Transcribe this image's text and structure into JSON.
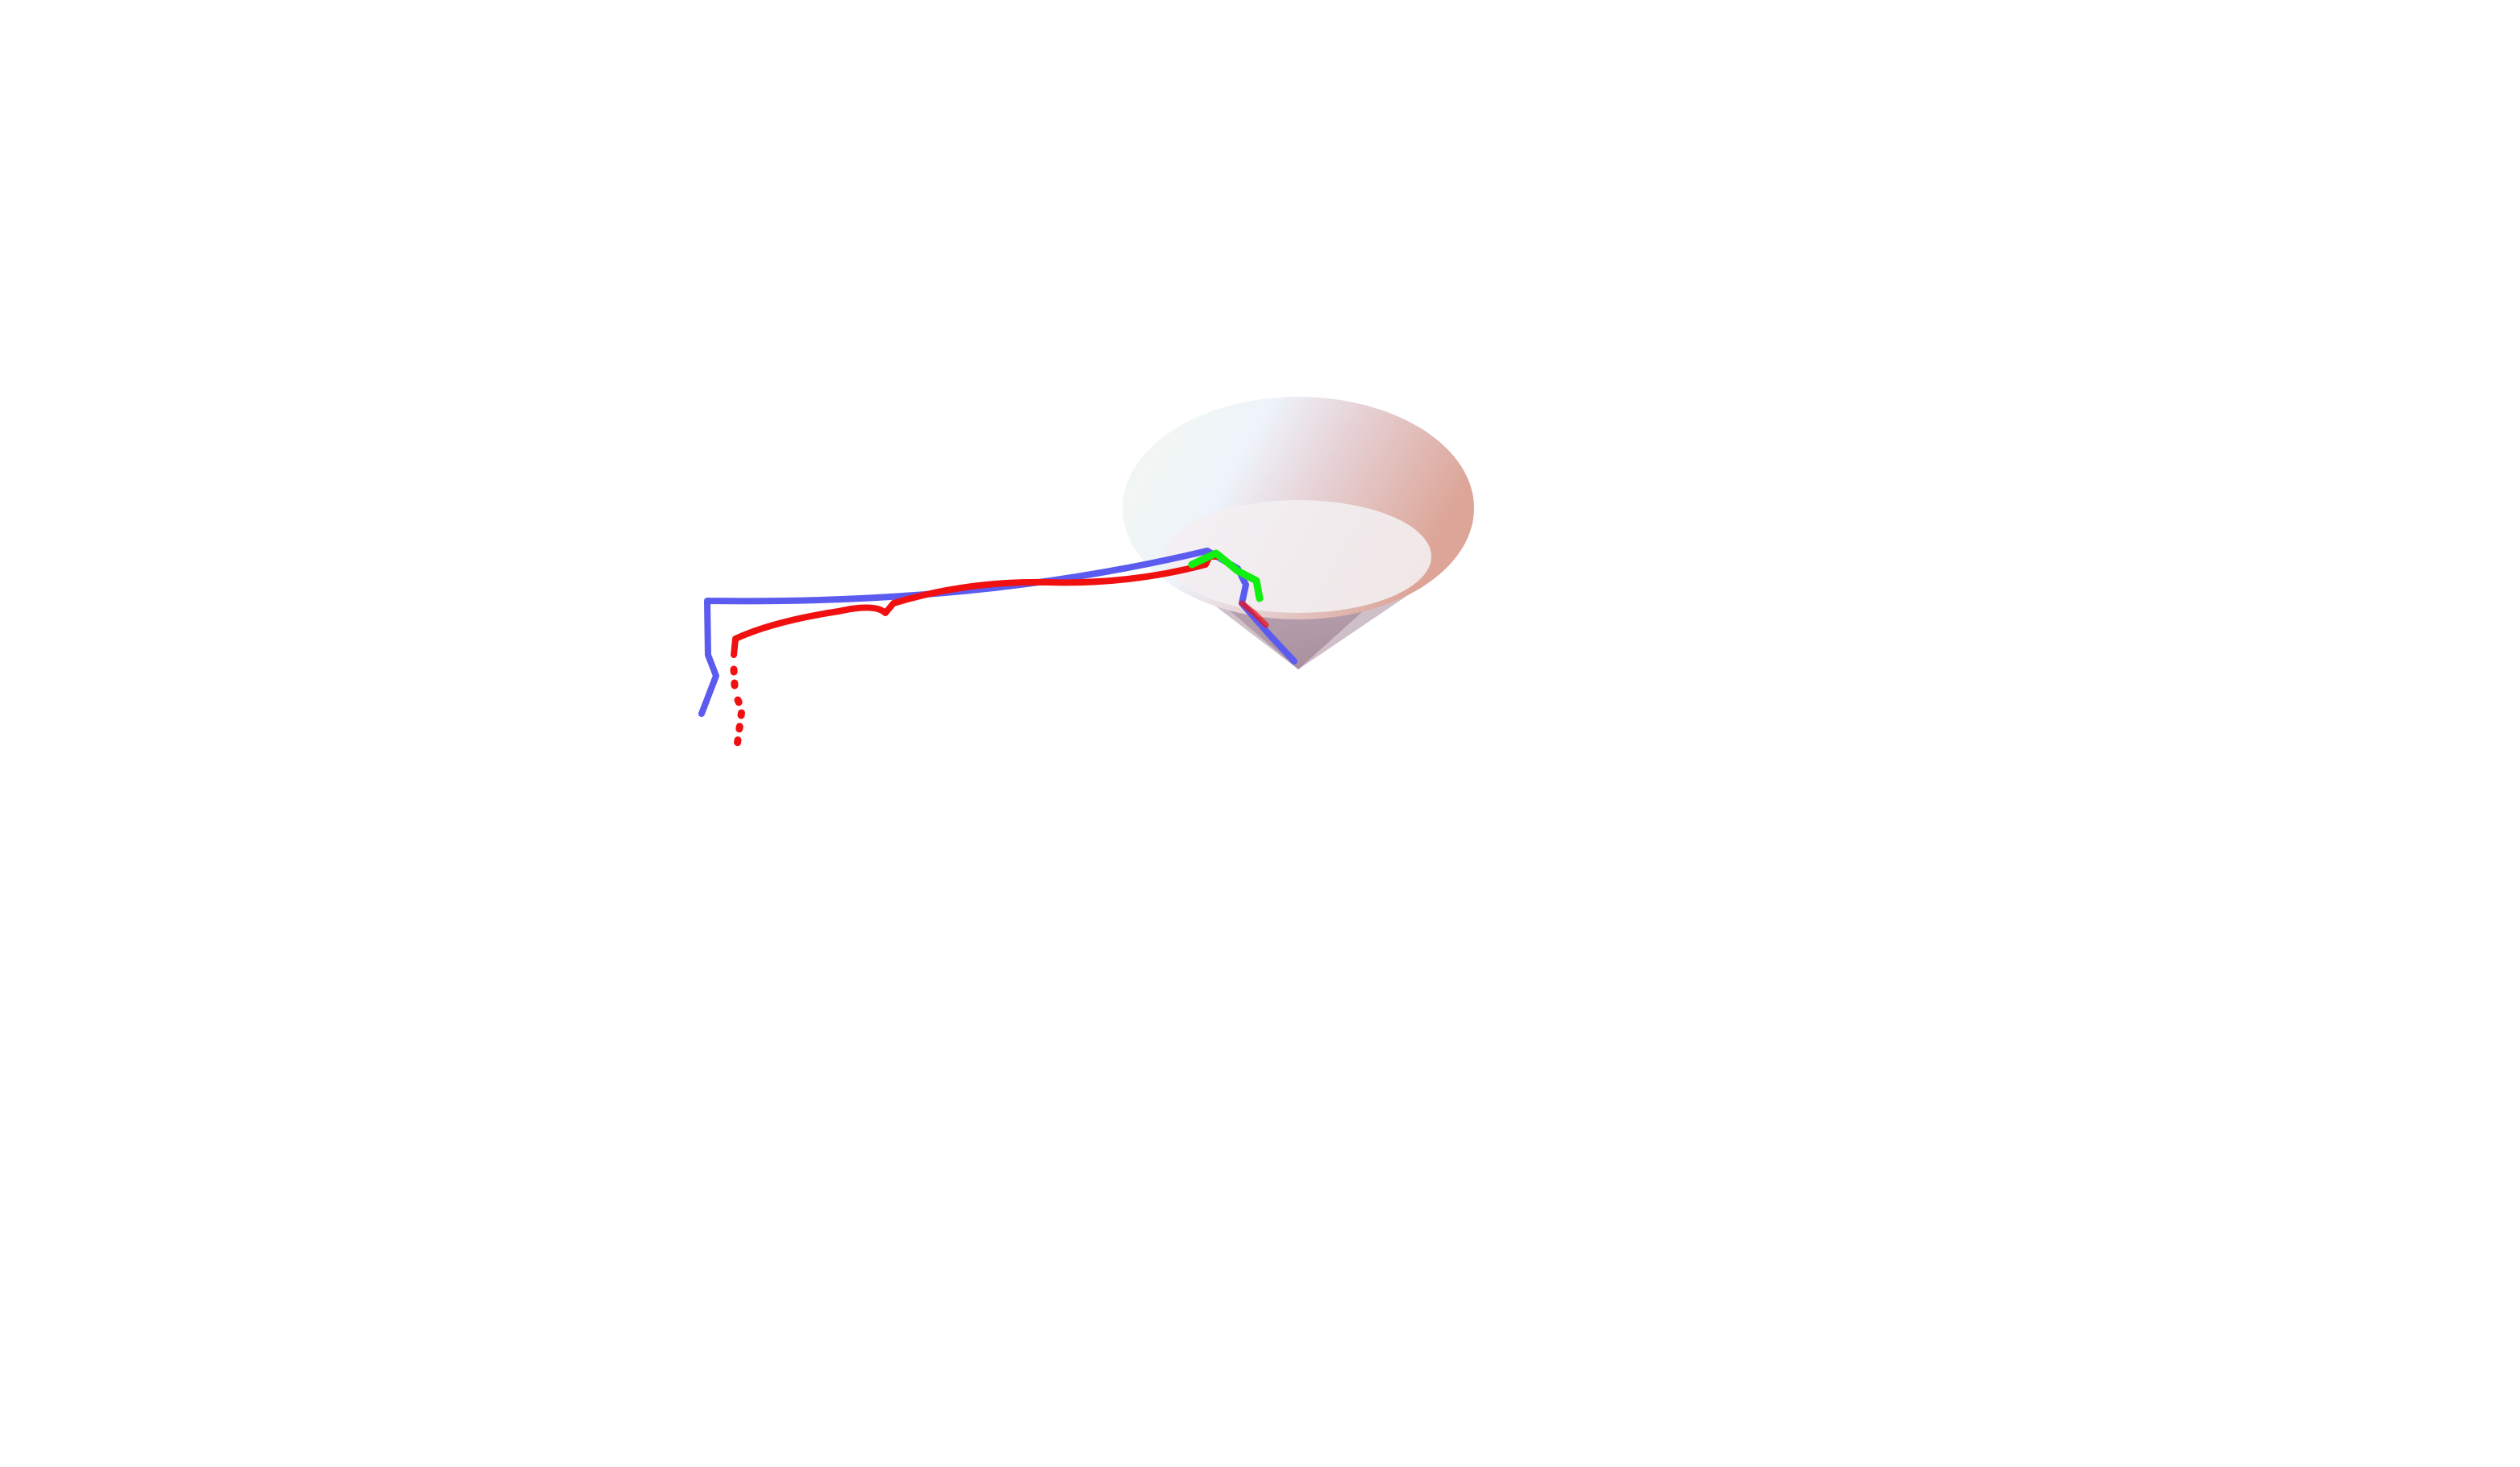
{
  "scene": {
    "background": "#ffffff",
    "cone": {
      "shape": "cone",
      "orientation": "apex-down",
      "rim_colors": [
        "#f4f7ee",
        "#eef4fb",
        "#e6d2d6",
        "#dca597"
      ],
      "side_color": "#c8b6c2",
      "apex_shade": "#9a7e92"
    },
    "paths": [
      {
        "color": "#5b5bf0",
        "style": "solid"
      },
      {
        "color": "#f01010",
        "style": "dotted-dashed"
      },
      {
        "color": "#11ee11",
        "style": "solid"
      }
    ]
  }
}
